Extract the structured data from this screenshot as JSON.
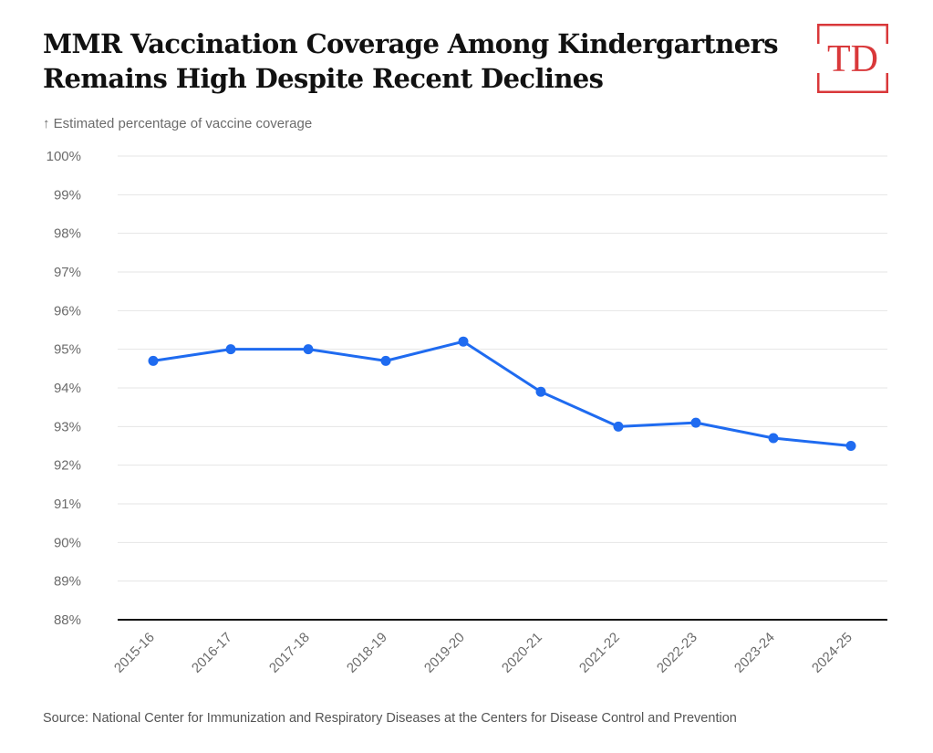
{
  "header": {
    "title": "MMR Vaccination Coverage Among Kindergartners Remains High Despite Recent Declines",
    "logo_text": "TD"
  },
  "footer": {
    "source": "Source: National Center for Immunization and Respiratory Diseases at the Centers for Disease Control and Prevention"
  },
  "colors": {
    "line": "#1f6bf0",
    "grid": "#e4e4e4",
    "axis": "#111111",
    "tick_text": "#6b6b6b",
    "brand": "#d9383a"
  },
  "chart_data": {
    "type": "line",
    "ylabel": "↑ Estimated percentage of vaccine coverage",
    "xlabel": "",
    "ylim": [
      88,
      100
    ],
    "y_ticks": [
      "100%",
      "99%",
      "98%",
      "97%",
      "96%",
      "95%",
      "94%",
      "93%",
      "92%",
      "91%",
      "90%",
      "89%",
      "88%"
    ],
    "categories": [
      "2015-16",
      "2016-17",
      "2017-18",
      "2018-19",
      "2019-20",
      "2020-21",
      "2021-22",
      "2022-23",
      "2023-24",
      "2024-25"
    ],
    "series": [
      {
        "values": [
          94.7,
          95.0,
          95.0,
          94.7,
          95.2,
          93.9,
          93.0,
          93.1,
          92.7,
          92.5
        ]
      }
    ],
    "grid": true,
    "legend": "none"
  }
}
